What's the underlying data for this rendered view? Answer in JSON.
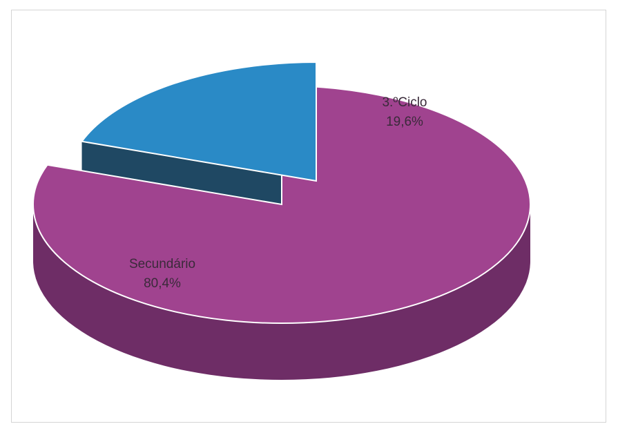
{
  "chart_data": {
    "type": "pie",
    "style": "3d-exploded",
    "slices": [
      {
        "label": "Secundário",
        "value": 80.4,
        "value_label": "80,4%",
        "color": "#a0438f",
        "side_color": "#6e2d66"
      },
      {
        "label": "3.ºCiclo",
        "value": 19.6,
        "value_label": "19,6%",
        "color": "#2a8ac6",
        "side_color": "#1f4863"
      }
    ]
  }
}
